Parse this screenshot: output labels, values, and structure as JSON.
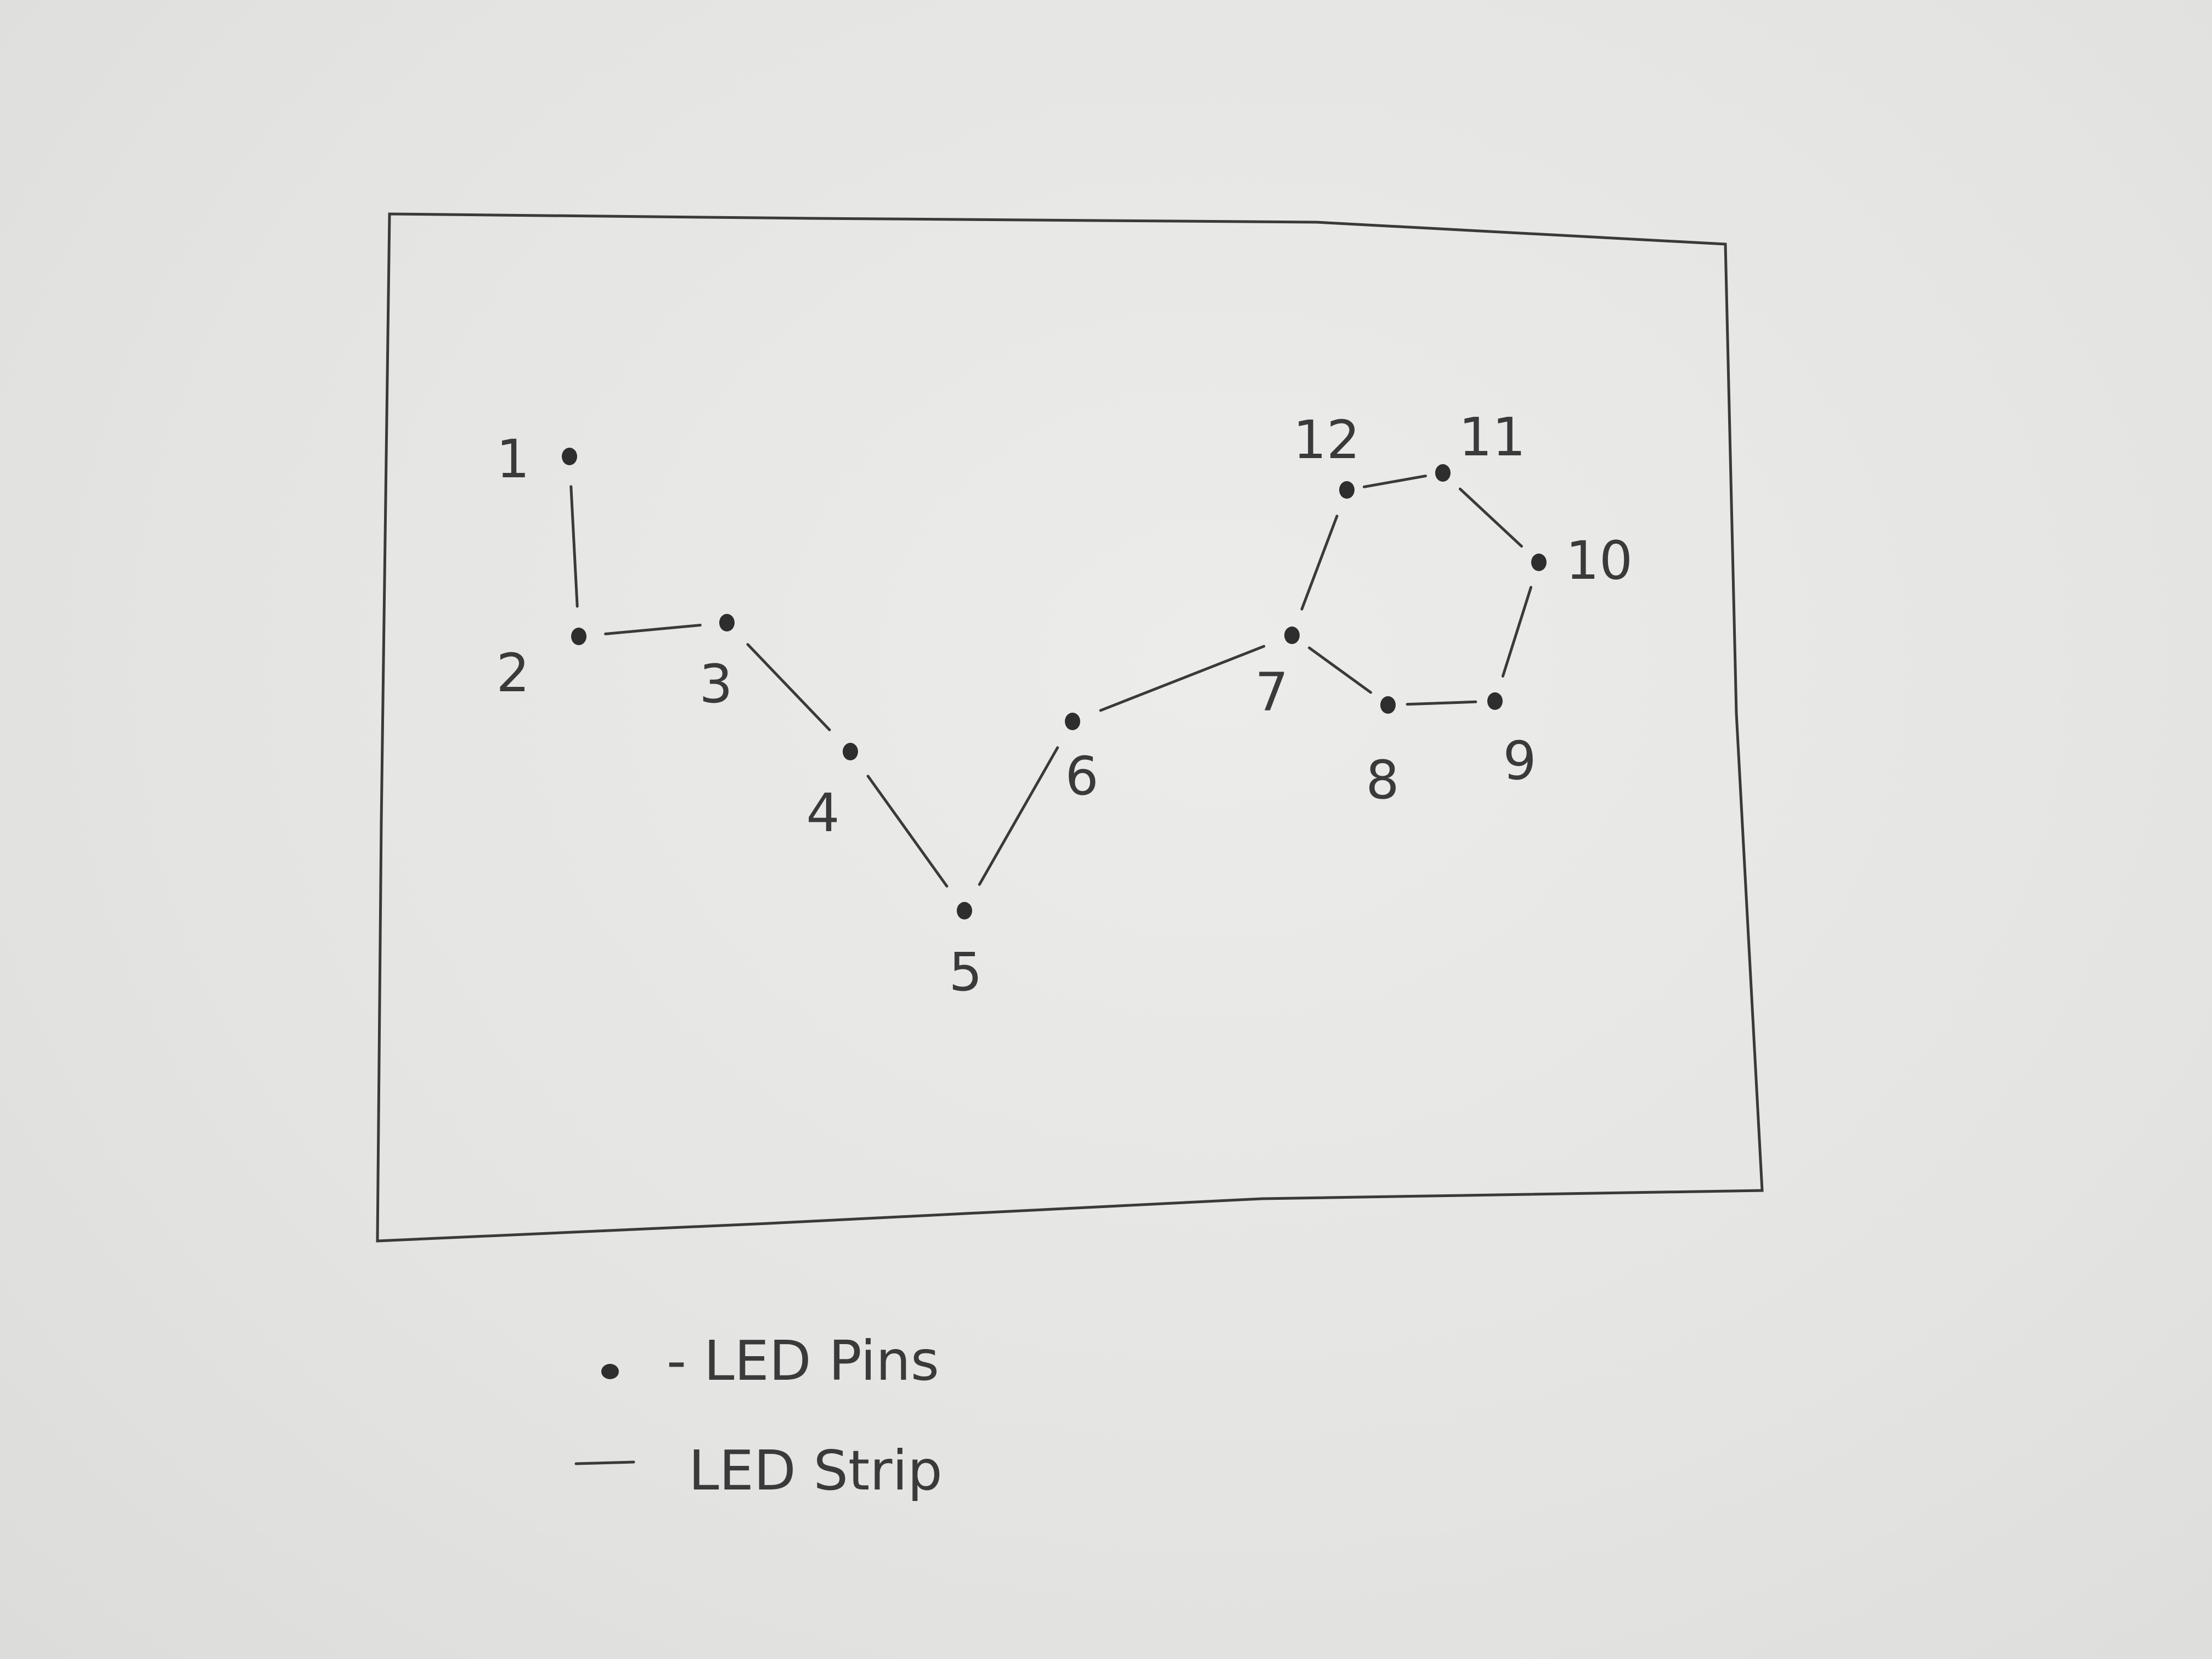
{
  "diagram": {
    "pins": [
      {
        "id": "1",
        "label": "1"
      },
      {
        "id": "2",
        "label": "2"
      },
      {
        "id": "3",
        "label": "3"
      },
      {
        "id": "4",
        "label": "4"
      },
      {
        "id": "5",
        "label": "5"
      },
      {
        "id": "6",
        "label": "6"
      },
      {
        "id": "7",
        "label": "7"
      },
      {
        "id": "8",
        "label": "8"
      },
      {
        "id": "9",
        "label": "9"
      },
      {
        "id": "10",
        "label": "10"
      },
      {
        "id": "11",
        "label": "11"
      },
      {
        "id": "12",
        "label": "12"
      }
    ],
    "strips": [
      [
        "1",
        "2"
      ],
      [
        "2",
        "3"
      ],
      [
        "3",
        "4"
      ],
      [
        "4",
        "5"
      ],
      [
        "5",
        "6"
      ],
      [
        "6",
        "7"
      ],
      [
        "7",
        "8"
      ],
      [
        "8",
        "9"
      ],
      [
        "9",
        "10"
      ],
      [
        "10",
        "11"
      ],
      [
        "11",
        "12"
      ],
      [
        "12",
        "7"
      ]
    ]
  },
  "legend": {
    "pin_label": "- LED Pins",
    "strip_label": "LED Strip"
  },
  "colors": {
    "paper": "#e6e6e4",
    "pencil": "#3a3a3a"
  }
}
